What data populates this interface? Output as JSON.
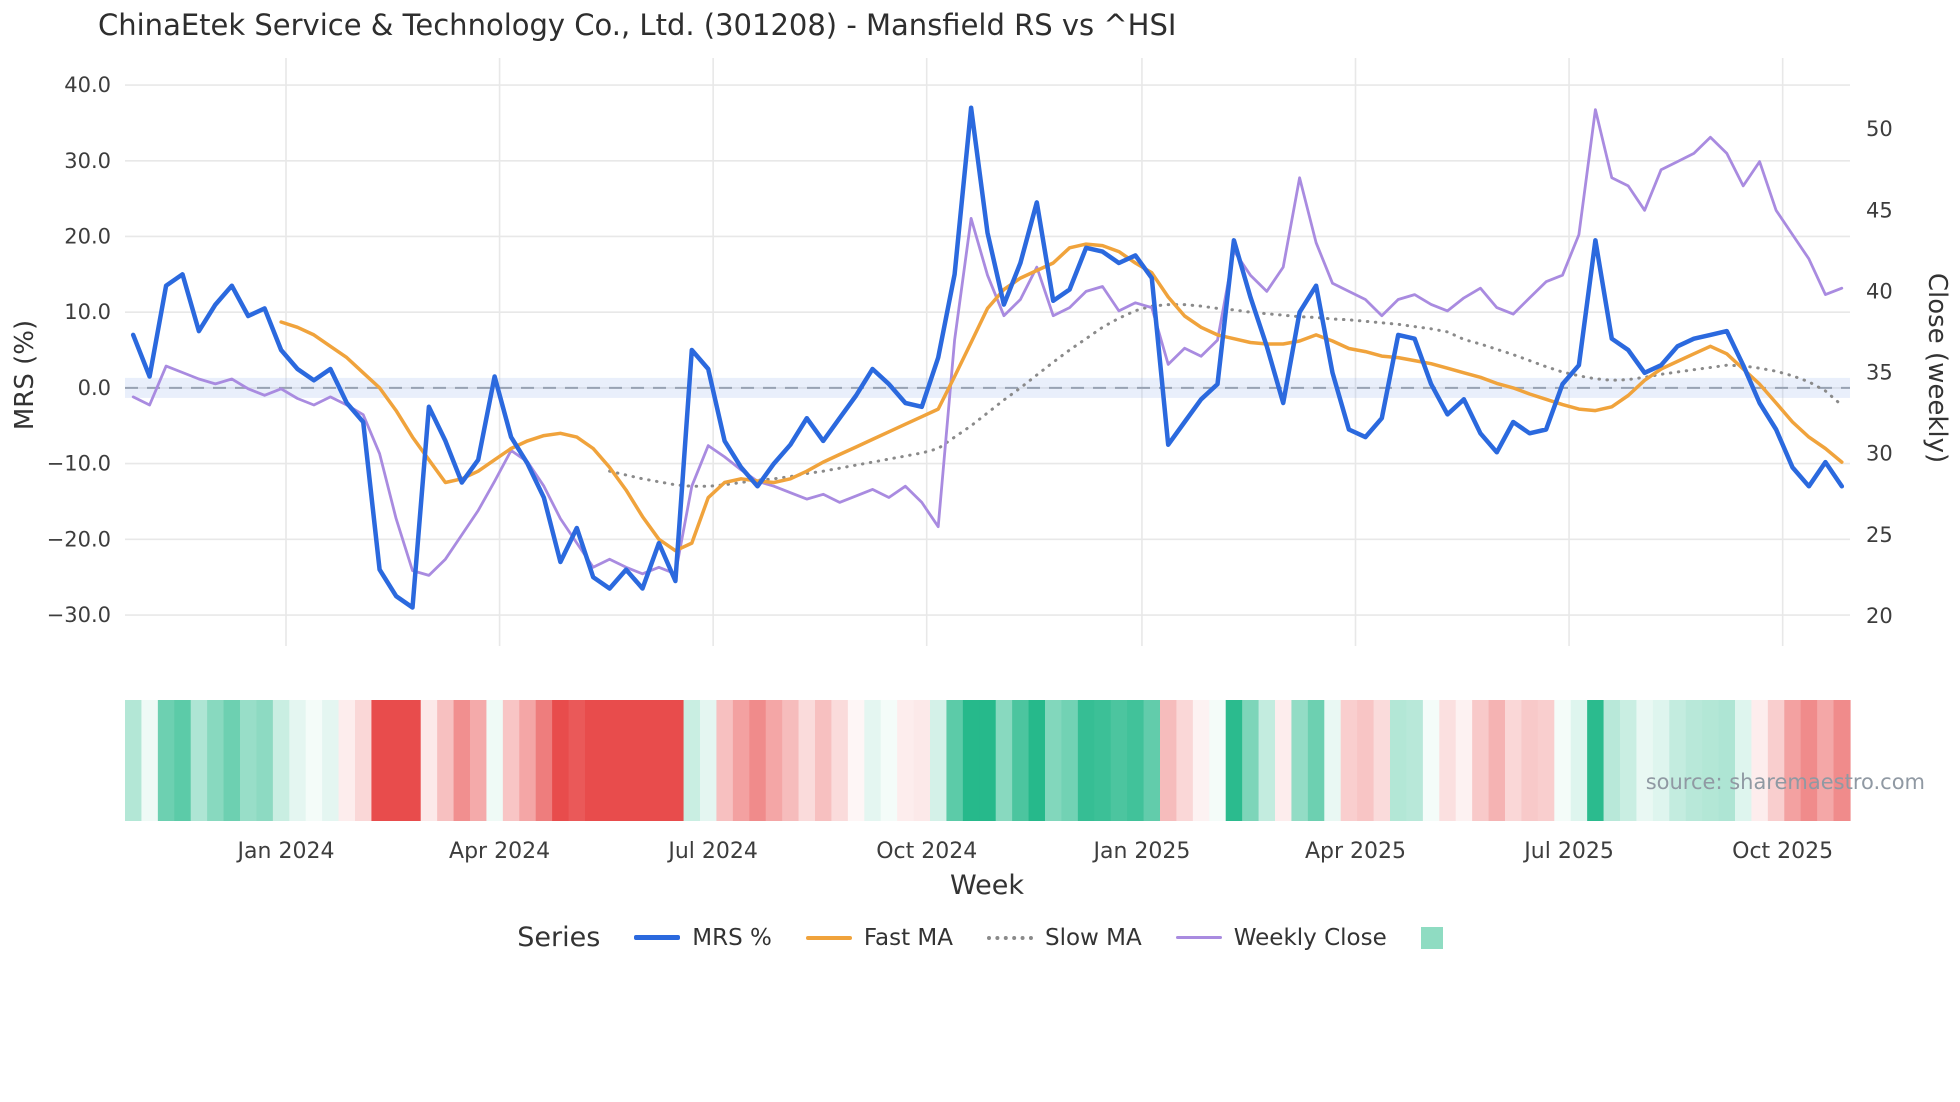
{
  "title": "ChinaEtek Service & Technology Co., Ltd. (301208) - Mansfield RS vs ^HSI",
  "source_credit": "source: sharemaestro.com",
  "legend": {
    "title": "Series",
    "items": [
      {
        "label": "MRS %",
        "swatch": "line",
        "color": "#2b69de",
        "thickness": 5
      },
      {
        "label": "Fast MA",
        "swatch": "line",
        "color": "#f0a33c",
        "thickness": 4
      },
      {
        "label": "Slow MA",
        "swatch": "dotted",
        "color": "#8a8a8a",
        "thickness": 3
      },
      {
        "label": "Weekly Close",
        "swatch": "line",
        "color": "#a98be0",
        "thickness": 3
      },
      {
        "label": "",
        "swatch": "square",
        "color": "#8fdcc2"
      }
    ]
  },
  "chart_data": {
    "type": "line",
    "title": "ChinaEtek Service & Technology Co., Ltd. (301208) - Mansfield RS vs ^HSI",
    "xlabel": "Week",
    "ylabel_left": "MRS (%)",
    "ylabel_right": "Close (weekly)",
    "n_weeks": 105,
    "x_ticks": [
      {
        "label": "Jan 2024",
        "week_index": 9.3
      },
      {
        "label": "Apr 2024",
        "week_index": 22.3
      },
      {
        "label": "Jul 2024",
        "week_index": 35.3
      },
      {
        "label": "Oct 2024",
        "week_index": 48.3
      },
      {
        "label": "Jan 2025",
        "week_index": 61.4
      },
      {
        "label": "Apr 2025",
        "week_index": 74.4
      },
      {
        "label": "Jul 2025",
        "week_index": 87.4
      },
      {
        "label": "Oct 2025",
        "week_index": 100.4
      }
    ],
    "y_left_ticks": [
      {
        "value": 40,
        "label": "40.0"
      },
      {
        "value": 30,
        "label": "30.0"
      },
      {
        "value": 20,
        "label": "20.0"
      },
      {
        "value": 10,
        "label": "10.0"
      },
      {
        "value": 0,
        "label": "0.0"
      },
      {
        "value": -10,
        "label": "−10.0"
      },
      {
        "value": -20,
        "label": "−20.0"
      },
      {
        "value": -30,
        "label": "−30.0"
      }
    ],
    "y_right_ticks": [
      {
        "value": 50,
        "label": "50"
      },
      {
        "value": 45,
        "label": "45"
      },
      {
        "value": 40,
        "label": "40"
      },
      {
        "value": 35,
        "label": "35"
      },
      {
        "value": 30,
        "label": "30"
      },
      {
        "value": 25,
        "label": "25"
      },
      {
        "value": 20,
        "label": "20"
      }
    ],
    "y_left_range": [
      -33,
      43
    ],
    "y_right_range": [
      18.5,
      52
    ],
    "grid": true,
    "legend_position": "bottom",
    "zero_line": {
      "value": 0,
      "style": "dashed",
      "band_color": "rgba(132,166,233,0.18)",
      "line_color": "#98a2b3"
    },
    "series": [
      {
        "name": "MRS %",
        "axis": "left",
        "color": "#2b69de",
        "width": 4.5,
        "style": "solid",
        "values": [
          7,
          1.5,
          13.5,
          15,
          7.5,
          11,
          13.5,
          9.5,
          10.5,
          5,
          2.5,
          1,
          2.5,
          -2,
          -4.5,
          -24,
          -27.5,
          -29,
          -2.5,
          -7,
          -12.5,
          -9.5,
          1.5,
          -6.5,
          -10,
          -14.5,
          -23,
          -18.5,
          -25,
          -26.5,
          -24,
          -26.5,
          -20.5,
          -25.5,
          5,
          2.5,
          -7,
          -10.5,
          -13,
          -10,
          -7.5,
          -4,
          -7,
          -4,
          -1,
          2.5,
          0.5,
          -2,
          -2.5,
          4,
          15,
          37,
          20.5,
          11,
          16.5,
          24.5,
          11.5,
          13,
          18.5,
          18,
          16.5,
          17.5,
          14.5,
          -7.5,
          -4.5,
          -1.5,
          0.5,
          19.5,
          12,
          5.5,
          -2,
          10,
          13.5,
          2,
          -5.5,
          -6.5,
          -4,
          7,
          6.5,
          0.5,
          -3.5,
          -1.5,
          -6,
          -8.5,
          -4.5,
          -6,
          -5.5,
          0.5,
          3,
          19.5,
          6.5,
          5,
          2,
          3,
          5.5,
          6.5,
          7,
          7.5,
          3,
          -2,
          -5.5,
          -10.5,
          -13,
          -9.8,
          -13
        ]
      },
      {
        "name": "Fast MA",
        "axis": "left",
        "color": "#f0a33c",
        "width": 3.5,
        "style": "solid",
        "values": [
          null,
          null,
          null,
          null,
          null,
          null,
          null,
          null,
          null,
          8.7,
          8,
          7,
          5.5,
          4,
          2,
          0,
          -3,
          -6.5,
          -9.5,
          -12.5,
          -12,
          -11,
          -9.5,
          -8,
          -7,
          -6.3,
          -6,
          -6.5,
          -8,
          -10.5,
          -13.5,
          -17,
          -20,
          -21.5,
          -20.5,
          -14.5,
          -12.5,
          -12,
          -12.3,
          -12.5,
          -12,
          -11,
          -9.8,
          -8.8,
          -7.8,
          -6.8,
          -5.8,
          -4.8,
          -3.8,
          -2.8,
          1.5,
          6,
          10.5,
          13,
          14.5,
          15.5,
          16.5,
          18.5,
          19,
          18.8,
          18,
          16.5,
          15.2,
          12,
          9.5,
          8,
          7,
          6.5,
          6,
          5.8,
          5.8,
          6.2,
          7,
          6.2,
          5.2,
          4.8,
          4.2,
          4,
          3.6,
          3.2,
          2.6,
          2,
          1.4,
          0.6,
          0,
          -0.8,
          -1.5,
          -2.2,
          -2.8,
          -3,
          -2.5,
          -1,
          1,
          2.5,
          3.5,
          4.5,
          5.5,
          4.5,
          2.5,
          0.5,
          -2,
          -4.5,
          -6.5,
          -8,
          -9.8
        ]
      },
      {
        "name": "Slow MA",
        "axis": "left",
        "color": "#8a8a8a",
        "width": 3,
        "style": "dotted",
        "values": [
          null,
          null,
          null,
          null,
          null,
          null,
          null,
          null,
          null,
          null,
          null,
          null,
          null,
          null,
          null,
          null,
          null,
          null,
          null,
          null,
          null,
          null,
          null,
          null,
          null,
          null,
          null,
          null,
          null,
          -11,
          -11.5,
          -12,
          -12.4,
          -12.8,
          -13,
          -13,
          -12.8,
          -12.5,
          -12.2,
          -12,
          -11.7,
          -11.3,
          -11,
          -10.6,
          -10.2,
          -9.8,
          -9.4,
          -9,
          -8.6,
          -8,
          -6.5,
          -5,
          -3.3,
          -1.6,
          0,
          1.7,
          3.4,
          5,
          6.5,
          8,
          9.2,
          10.2,
          10.8,
          11,
          11,
          10.8,
          10.5,
          10.3,
          10,
          9.8,
          9.6,
          9.4,
          9.3,
          9.1,
          9,
          8.8,
          8.6,
          8.4,
          8.1,
          7.8,
          7.4,
          6.4,
          5.8,
          5.1,
          4.4,
          3.6,
          2.8,
          2.1,
          1.6,
          1.2,
          1,
          1.1,
          1.4,
          1.8,
          2.1,
          2.4,
          2.7,
          3,
          2.9,
          2.6,
          2.2,
          1.6,
          0.8,
          -0.4,
          -2.3
        ]
      },
      {
        "name": "Weekly Close",
        "axis": "right",
        "color": "#a98be0",
        "width": 2.8,
        "style": "solid",
        "values": [
          33.5,
          33,
          35.4,
          35,
          34.6,
          34.3,
          34.6,
          34,
          33.6,
          34,
          33.4,
          33,
          33.5,
          33,
          32.4,
          30,
          26,
          22.8,
          22.5,
          23.5,
          25,
          26.5,
          28.3,
          30.2,
          29.5,
          28,
          26,
          24.5,
          23,
          23.5,
          23,
          22.6,
          23,
          22.6,
          28,
          30.5,
          29.8,
          29,
          28.3,
          28,
          27.6,
          27.2,
          27.5,
          27,
          27.4,
          27.8,
          27.3,
          28,
          27,
          25.5,
          37,
          44.5,
          41,
          38.5,
          39.5,
          41.5,
          38.5,
          39,
          40,
          40.3,
          38.8,
          39.3,
          39,
          35.5,
          36.5,
          36,
          37,
          42.5,
          41,
          40,
          41.5,
          47,
          43,
          40.5,
          40,
          39.5,
          38.5,
          39.5,
          39.8,
          39.2,
          38.8,
          39.6,
          40.2,
          39,
          38.6,
          39.6,
          40.6,
          41,
          43.5,
          51.2,
          47,
          46.5,
          45,
          47.5,
          48,
          48.5,
          49.5,
          48.5,
          46.5,
          48,
          45,
          43.5,
          42,
          39.8,
          40.2
        ]
      }
    ],
    "heatmap": {
      "derived_from": "MRS %",
      "positive_color": "#26b98b",
      "negative_color": "#e84c4c",
      "max_abs": 20
    }
  }
}
